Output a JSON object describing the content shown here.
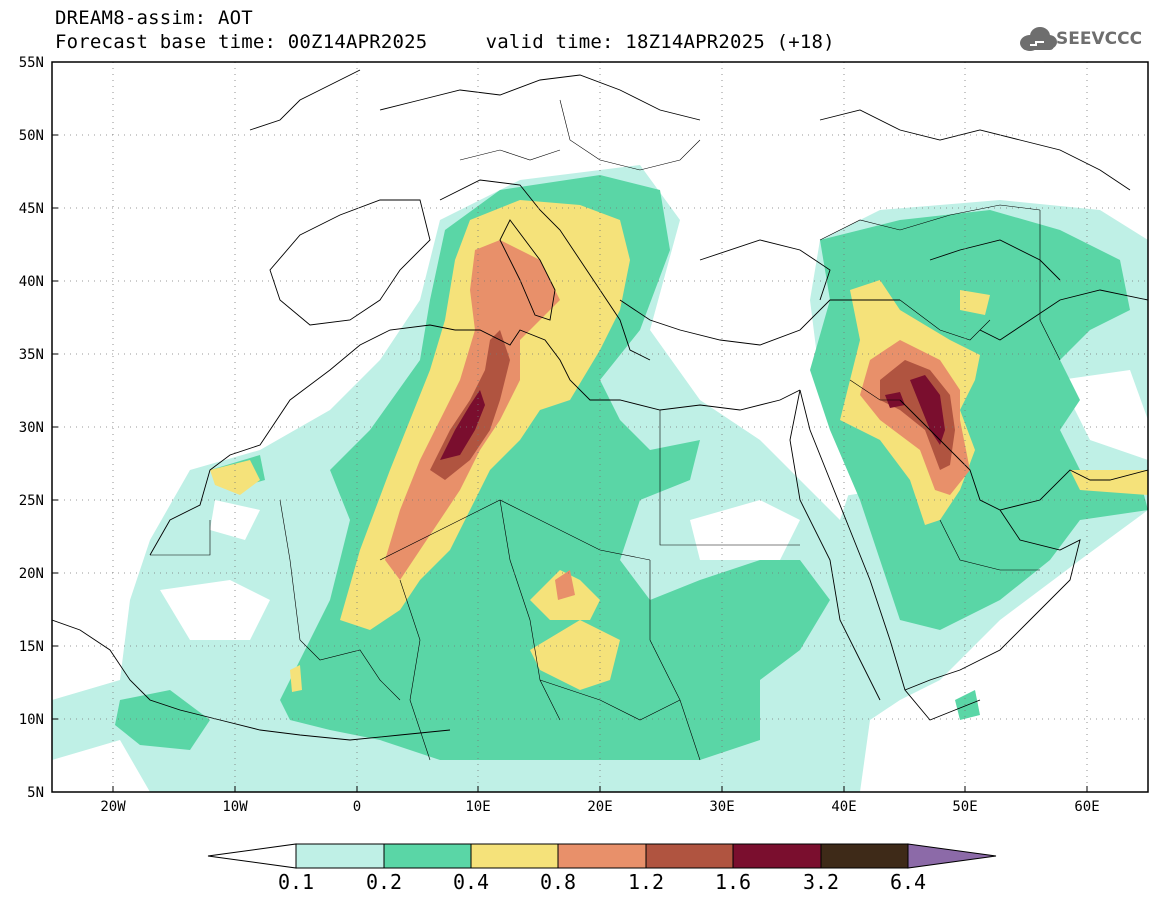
{
  "header": {
    "line1": "DREAM8-assim: AOT",
    "line2": "Forecast base time: 00Z14APR2025     valid time: 18Z14APR2025 (+18)"
  },
  "logo": {
    "text": "SEEVCCC",
    "icon": "cloud-icon",
    "color": "#6e6e6e"
  },
  "map": {
    "y_ticks": [
      "55N",
      "50N",
      "45N",
      "40N",
      "35N",
      "30N",
      "25N",
      "20N",
      "15N",
      "10N",
      "5N"
    ],
    "x_ticks": [
      "20W",
      "10W",
      "0",
      "10E",
      "20E",
      "30E",
      "40E",
      "50E",
      "60E"
    ],
    "lon_range": [
      -25,
      65
    ],
    "lat_range": [
      5,
      55
    ],
    "grid": "dotted"
  },
  "colorbar": {
    "labels": [
      "0.1",
      "0.2",
      "0.4",
      "0.8",
      "1.2",
      "1.6",
      "3.2",
      "6.4"
    ],
    "colors": [
      "#bff0e6",
      "#5ad6a6",
      "#f5e27a",
      "#e8906a",
      "#b05440",
      "#7a0e2e",
      "#3e2a18",
      "#8c6aa8"
    ],
    "under_color": "#ffffff"
  }
}
